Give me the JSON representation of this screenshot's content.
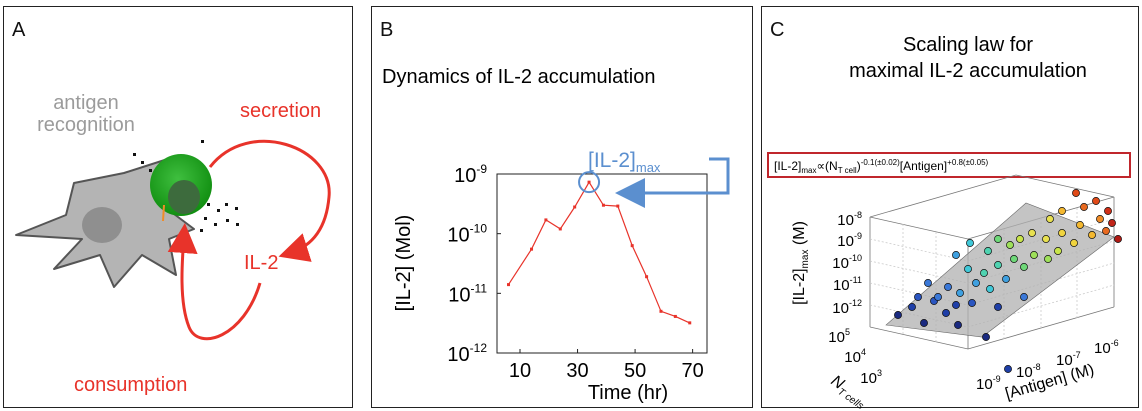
{
  "panels": [
    {
      "label": "A",
      "texts": {
        "antigen": "antigen",
        "recognition": "recognition",
        "secretion": "secretion",
        "il2": "IL-2",
        "consumption": "consumption"
      }
    },
    {
      "label": "B",
      "title": "Dynamics of IL-2 accumulation",
      "max_label_base": "[IL-2]",
      "max_label_sub": "max"
    },
    {
      "label": "C",
      "title_line1": "Scaling law for",
      "title_line2": "maximal IL-2 accumulation",
      "formula": {
        "a": "[IL-2]",
        "a_sub": "max",
        "b": "∝(N",
        "b_sub": "T cell",
        "c": ")",
        "c_sup": "-0.1(±0.02)",
        "d": "[Antigen]",
        "d_sup": "+0.8(±0.05)"
      },
      "zlabel_base": "[IL-2]",
      "zlabel_sub": "max",
      "zlabel_unit": " (M)",
      "zticks": [
        {
          "base": "10",
          "exp": "-8"
        },
        {
          "base": "10",
          "exp": "-9"
        },
        {
          "base": "10",
          "exp": "-10"
        },
        {
          "base": "10",
          "exp": "-11"
        },
        {
          "base": "10",
          "exp": "-12"
        }
      ],
      "nticks": [
        {
          "base": "10",
          "exp": "5"
        },
        {
          "base": "10",
          "exp": "4"
        },
        {
          "base": "10",
          "exp": "3"
        }
      ],
      "aticks": [
        {
          "base": "10",
          "exp": "-9"
        },
        {
          "base": "10",
          "exp": "-8"
        },
        {
          "base": "10",
          "exp": "-7"
        },
        {
          "base": "10",
          "exp": "-6"
        }
      ],
      "nlabel_base": "N",
      "nlabel_sub": "T cells",
      "alabel": "[Antigen] (M)"
    }
  ],
  "chart_data": {
    "type": "line",
    "xlabel": "Time (hr)",
    "ylabel": "[IL-2] (Mol)",
    "xlim": [
      2,
      75
    ],
    "ylim": [
      1e-12,
      1e-09
    ],
    "yscale": "log",
    "xticks": [
      "10",
      "30",
      "50",
      "70"
    ],
    "yticks": [
      {
        "base": "10",
        "exp": "-9"
      },
      {
        "base": "10",
        "exp": "-10"
      },
      {
        "base": "10",
        "exp": "-11"
      },
      {
        "base": "10",
        "exp": "-12"
      }
    ],
    "color": "#e8332a",
    "series": [
      {
        "x": [
          6,
          14,
          19,
          24,
          29,
          34,
          39,
          44,
          49,
          54,
          59,
          64,
          69
        ],
        "y": [
          1.4e-11,
          5.5e-11,
          1.7e-10,
          1.2e-10,
          2.8e-10,
          7.3e-10,
          3e-10,
          2.9e-10,
          6.3e-11,
          1.9e-11,
          5e-12,
          4.1e-12,
          3.2e-12
        ]
      }
    ],
    "max_point": {
      "x": 34,
      "y": 7.3e-10
    }
  },
  "colors": {
    "red": "#e8332a",
    "blue": "#5b8fcf",
    "green": "#1a8a1a",
    "grey": "#9b9b9b",
    "cell_grey": "#b4b4b4",
    "formula_box": "#c0262c"
  }
}
